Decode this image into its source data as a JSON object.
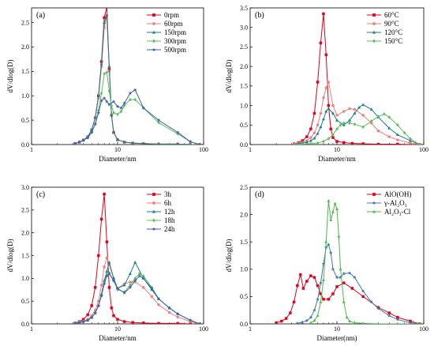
{
  "figure": {
    "panel_tags": [
      "(a)",
      "(b)",
      "(c)",
      "(d)"
    ]
  },
  "chart_data": [
    {
      "type": "line",
      "panel": "(a)",
      "xlabel": "Diameter/nm",
      "ylabel": "dV/dlog(D)",
      "x_scale": "log",
      "xlim": [
        1,
        100
      ],
      "ylim": [
        0,
        2.8
      ],
      "x_ticks": [
        "1",
        "10",
        "100"
      ],
      "y_ticks": [
        "0.0",
        "0.5",
        "1.0",
        "1.5",
        "2.0",
        "2.5"
      ],
      "legend": "top-right",
      "series": [
        {
          "name": "0rpm",
          "color": "#e3001b",
          "marker": "square",
          "x": [
            3.2,
            3.6,
            4.0,
            4.5,
            5.0,
            5.5,
            6.0,
            6.5,
            7.0,
            7.5,
            8.0,
            8.5,
            9.0,
            10,
            12,
            15,
            20,
            30,
            50,
            70,
            90
          ],
          "y": [
            0.02,
            0.05,
            0.09,
            0.16,
            0.3,
            0.55,
            1.0,
            1.7,
            2.6,
            2.82,
            1.55,
            0.6,
            0.25,
            0.1,
            0.05,
            0.03,
            0.02,
            0.01,
            0.01,
            0.0,
            0.0
          ]
        },
        {
          "name": "60rpm",
          "color": "#f07e7e",
          "marker": "circle",
          "x": [
            3.2,
            3.6,
            4.0,
            4.5,
            5.0,
            5.5,
            6.0,
            6.5,
            7.0,
            7.5,
            8.0,
            8.5,
            9.0,
            10,
            12,
            15,
            20,
            30,
            50,
            70,
            90
          ],
          "y": [
            0.02,
            0.05,
            0.09,
            0.16,
            0.3,
            0.55,
            0.95,
            1.6,
            2.4,
            2.65,
            1.5,
            0.6,
            0.25,
            0.1,
            0.05,
            0.03,
            0.02,
            0.01,
            0.01,
            0.0,
            0.0
          ]
        },
        {
          "name": "150rpm",
          "color": "#1a7f86",
          "marker": "triangle",
          "x": [
            3.2,
            3.6,
            4.0,
            4.5,
            5.0,
            5.5,
            6.0,
            6.5,
            7.0,
            7.5,
            8.0,
            8.5,
            9.0,
            10,
            12,
            15,
            20,
            30,
            50,
            70,
            90
          ],
          "y": [
            0.02,
            0.05,
            0.09,
            0.16,
            0.3,
            0.55,
            1.0,
            1.65,
            2.5,
            2.65,
            1.6,
            0.6,
            0.25,
            0.1,
            0.05,
            0.03,
            0.02,
            0.01,
            0.01,
            0.0,
            0.0
          ]
        },
        {
          "name": "300rpm",
          "color": "#5ac05a",
          "marker": "diamond",
          "x": [
            3.2,
            3.6,
            4.0,
            4.5,
            5.0,
            5.5,
            6.0,
            6.5,
            7.0,
            7.5,
            8.0,
            8.5,
            9.0,
            10,
            11,
            12,
            14,
            16,
            20,
            30,
            50,
            70,
            90
          ],
          "y": [
            0.02,
            0.05,
            0.09,
            0.14,
            0.25,
            0.42,
            0.7,
            1.05,
            1.45,
            1.48,
            1.1,
            0.8,
            0.65,
            0.62,
            0.68,
            0.8,
            0.92,
            0.92,
            0.75,
            0.45,
            0.22,
            0.06,
            0.0
          ]
        },
        {
          "name": "500rpm",
          "color": "#3d5fb0",
          "marker": "star",
          "x": [
            3.2,
            3.6,
            4.0,
            4.5,
            5.0,
            5.5,
            6.0,
            6.5,
            7.0,
            7.5,
            8.0,
            9.0,
            10,
            11,
            12,
            14,
            16,
            20,
            30,
            50,
            70,
            90
          ],
          "y": [
            0.02,
            0.05,
            0.09,
            0.14,
            0.25,
            0.42,
            0.65,
            0.9,
            0.95,
            0.88,
            0.82,
            0.88,
            0.78,
            0.75,
            0.85,
            1.05,
            1.12,
            0.75,
            0.5,
            0.25,
            0.06,
            0.0
          ]
        }
      ]
    },
    {
      "type": "line",
      "panel": "(b)",
      "xlabel": "Diameter/nm",
      "ylabel": "dV/dlog(D)",
      "x_scale": "log",
      "xlim": [
        1,
        100
      ],
      "ylim": [
        0,
        3.5
      ],
      "x_ticks": [
        "1",
        "10",
        "100"
      ],
      "y_ticks": [
        "0.0",
        "0.5",
        "1.0",
        "1.5",
        "2.0",
        "2.5",
        "3.0",
        "3.5"
      ],
      "legend": "top-right",
      "series": [
        {
          "name": "60°C",
          "color": "#e3001b",
          "marker": "square",
          "x": [
            3.2,
            3.6,
            4.0,
            4.5,
            5.0,
            5.5,
            6.0,
            6.5,
            7.0,
            7.5,
            8.0,
            8.5,
            9.0,
            10,
            12,
            15,
            20,
            30,
            50,
            70,
            90
          ],
          "y": [
            0.02,
            0.05,
            0.1,
            0.2,
            0.4,
            0.8,
            1.6,
            2.6,
            3.35,
            2.3,
            1.0,
            0.4,
            0.18,
            0.08,
            0.05,
            0.03,
            0.02,
            0.01,
            0.01,
            0.0,
            0.0
          ]
        },
        {
          "name": "90°C",
          "color": "#f07e7e",
          "marker": "circle",
          "x": [
            3.2,
            3.6,
            4.0,
            4.5,
            5.0,
            5.5,
            6.0,
            6.5,
            7.0,
            7.5,
            8.0,
            9.0,
            10,
            12,
            14,
            16,
            20,
            25,
            30,
            40,
            50,
            70,
            90
          ],
          "y": [
            0.02,
            0.04,
            0.06,
            0.1,
            0.18,
            0.3,
            0.5,
            0.8,
            1.2,
            1.45,
            1.6,
            1.0,
            0.75,
            0.85,
            0.92,
            0.9,
            0.75,
            0.55,
            0.35,
            0.2,
            0.12,
            0.04,
            0.0
          ]
        },
        {
          "name": "120°C",
          "color": "#1a7f86",
          "marker": "triangle",
          "x": [
            3.2,
            3.6,
            4.0,
            4.5,
            5.0,
            5.5,
            6.0,
            6.5,
            7.0,
            7.5,
            8.0,
            9.0,
            10,
            12,
            14,
            16,
            18,
            20,
            25,
            30,
            40,
            50,
            70,
            90
          ],
          "y": [
            0.01,
            0.02,
            0.04,
            0.06,
            0.1,
            0.16,
            0.28,
            0.45,
            0.65,
            0.85,
            0.92,
            0.8,
            0.62,
            0.5,
            0.62,
            0.8,
            0.95,
            1.02,
            0.9,
            0.7,
            0.42,
            0.25,
            0.1,
            0.0
          ]
        },
        {
          "name": "150°C",
          "color": "#5ac05a",
          "marker": "diamond",
          "x": [
            3.2,
            4.0,
            5.0,
            6.0,
            7.0,
            8.0,
            9.0,
            10,
            11,
            12,
            14,
            16,
            20,
            25,
            30,
            35,
            40,
            50,
            60,
            70,
            90
          ],
          "y": [
            0.0,
            0.01,
            0.02,
            0.04,
            0.08,
            0.15,
            0.25,
            0.4,
            0.5,
            0.55,
            0.55,
            0.52,
            0.45,
            0.6,
            0.72,
            0.78,
            0.7,
            0.5,
            0.3,
            0.15,
            0.0
          ]
        }
      ]
    },
    {
      "type": "line",
      "panel": "(c)",
      "xlabel": "Diameter/nm",
      "ylabel": "dV/dlog(D)",
      "x_scale": "log",
      "xlim": [
        1,
        100
      ],
      "ylim": [
        0,
        3.0
      ],
      "x_ticks": [
        "1",
        "10",
        "100"
      ],
      "y_ticks": [
        "0.0",
        "0.5",
        "1.0",
        "1.5",
        "2.0",
        "2.5",
        "3.0"
      ],
      "legend": "top-right",
      "series": [
        {
          "name": "3h",
          "color": "#e3001b",
          "marker": "square",
          "x": [
            3.2,
            3.6,
            4.0,
            4.5,
            5.0,
            5.5,
            6.0,
            6.5,
            7.0,
            7.5,
            8.0,
            8.5,
            9.0,
            10,
            12,
            15,
            20,
            30,
            50,
            70,
            90
          ],
          "y": [
            0.02,
            0.05,
            0.1,
            0.2,
            0.4,
            0.8,
            1.5,
            2.3,
            2.85,
            1.8,
            0.8,
            0.35,
            0.18,
            0.1,
            0.05,
            0.03,
            0.02,
            0.01,
            0.01,
            0.0,
            0.0
          ]
        },
        {
          "name": "6h",
          "color": "#f07e7e",
          "marker": "circle",
          "x": [
            3.2,
            3.6,
            4.0,
            4.5,
            5.0,
            5.5,
            6.0,
            6.5,
            7.0,
            7.5,
            8.0,
            9.0,
            10,
            12,
            14,
            16,
            20,
            25,
            30,
            40,
            50,
            70,
            90
          ],
          "y": [
            0.02,
            0.04,
            0.06,
            0.1,
            0.18,
            0.3,
            0.5,
            0.85,
            1.25,
            1.45,
            1.3,
            1.0,
            0.78,
            0.88,
            0.92,
            0.92,
            0.8,
            0.6,
            0.42,
            0.25,
            0.15,
            0.05,
            0.0
          ]
        },
        {
          "name": "12h",
          "color": "#1a7f86",
          "marker": "triangle",
          "x": [
            3.2,
            3.6,
            4.0,
            4.5,
            5.0,
            5.5,
            6.0,
            6.5,
            7.0,
            7.5,
            8.0,
            9.0,
            10,
            12,
            14,
            16,
            20,
            25,
            30,
            40,
            50,
            70,
            90
          ],
          "y": [
            0.01,
            0.03,
            0.05,
            0.08,
            0.14,
            0.24,
            0.4,
            0.65,
            0.95,
            1.15,
            1.35,
            1.0,
            0.78,
            0.85,
            1.1,
            1.35,
            1.0,
            0.75,
            0.55,
            0.35,
            0.22,
            0.08,
            0.0
          ]
        },
        {
          "name": "18h",
          "color": "#5ac05a",
          "marker": "diamond",
          "x": [
            3.2,
            3.6,
            4.0,
            4.5,
            5.0,
            5.5,
            6.0,
            6.5,
            7.0,
            7.5,
            8.0,
            9.0,
            10,
            12,
            14,
            16,
            18,
            20,
            25,
            30,
            40,
            50,
            70,
            90
          ],
          "y": [
            0.01,
            0.03,
            0.05,
            0.08,
            0.14,
            0.24,
            0.4,
            0.62,
            0.9,
            1.08,
            1.12,
            0.95,
            0.75,
            0.7,
            0.85,
            1.0,
            1.1,
            1.05,
            0.8,
            0.55,
            0.35,
            0.22,
            0.08,
            0.0
          ]
        },
        {
          "name": "24h",
          "color": "#3d5fb0",
          "marker": "star",
          "x": [
            3.2,
            3.6,
            4.0,
            4.5,
            5.0,
            5.5,
            6.0,
            6.5,
            7.0,
            7.5,
            8.0,
            9.0,
            10,
            12,
            14,
            16,
            18,
            20,
            25,
            30,
            40,
            50,
            70,
            90
          ],
          "y": [
            0.01,
            0.03,
            0.05,
            0.08,
            0.14,
            0.24,
            0.4,
            0.62,
            0.88,
            1.05,
            1.1,
            0.95,
            0.78,
            0.68,
            0.8,
            0.95,
            1.05,
            1.0,
            0.78,
            0.55,
            0.35,
            0.22,
            0.08,
            0.0
          ]
        }
      ]
    },
    {
      "type": "line",
      "panel": "(d)",
      "xlabel": "Diameter(nm)",
      "ylabel": "dV/dlog(D)",
      "x_scale": "log",
      "xlim": [
        1,
        100
      ],
      "ylim": [
        0,
        2.5
      ],
      "x_ticks": [
        "1",
        "10",
        "100"
      ],
      "y_ticks": [
        "0.0",
        "0.5",
        "1.0",
        "1.5",
        "2.0",
        "2.5"
      ],
      "legend": "top-right",
      "series": [
        {
          "name": "AlO(OH)",
          "color": "#e3001b",
          "marker": "square",
          "x": [
            2.0,
            2.3,
            2.6,
            2.9,
            3.2,
            3.5,
            3.8,
            4.1,
            4.5,
            5.0,
            5.5,
            6.0,
            6.5,
            7.0,
            8.0,
            9.0,
            10,
            12,
            15,
            20,
            30,
            40,
            50,
            70,
            90
          ],
          "y": [
            0.02,
            0.05,
            0.1,
            0.2,
            0.4,
            0.7,
            0.9,
            0.65,
            0.78,
            0.88,
            0.85,
            0.7,
            0.55,
            0.45,
            0.45,
            0.55,
            0.68,
            0.75,
            0.65,
            0.5,
            0.3,
            0.2,
            0.12,
            0.05,
            0.0
          ]
        },
        {
          "name": "γ-Al₂O₃",
          "color": "#3d78a6",
          "marker": "star",
          "x": [
            3.5,
            4.0,
            4.5,
            5.0,
            5.5,
            6.0,
            6.5,
            7.0,
            7.5,
            8.0,
            8.5,
            9.0,
            10,
            11,
            12,
            14,
            16,
            20,
            25,
            30,
            40,
            50,
            70,
            90
          ],
          "y": [
            0.01,
            0.03,
            0.06,
            0.12,
            0.25,
            0.45,
            0.75,
            1.1,
            1.4,
            1.45,
            1.3,
            1.0,
            0.85,
            0.85,
            0.92,
            0.93,
            0.85,
            0.6,
            0.4,
            0.28,
            0.15,
            0.08,
            0.02,
            0.0
          ]
        },
        {
          "name": "Al₂O₃-Cl",
          "color": "#4cb84c",
          "marker": "triangle",
          "x": [
            5.0,
            5.5,
            6.0,
            6.5,
            7.0,
            7.5,
            8.0,
            8.5,
            9.0,
            9.5,
            10,
            10.5,
            11,
            12,
            13,
            14,
            16,
            20,
            30,
            50,
            90
          ],
          "y": [
            0.02,
            0.06,
            0.15,
            0.4,
            0.8,
            1.5,
            2.25,
            1.9,
            2.05,
            2.2,
            2.1,
            1.6,
            1.0,
            0.4,
            0.12,
            0.05,
            0.02,
            0.01,
            0.0,
            0.0,
            0.0
          ]
        }
      ]
    }
  ]
}
